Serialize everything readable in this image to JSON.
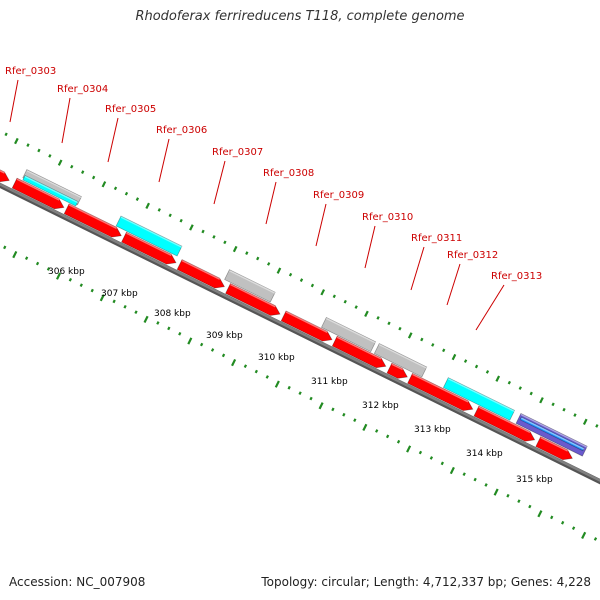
{
  "title": "Rhodoferax ferrireducens T118, complete genome",
  "footer": {
    "accession": "Accession: NC_007908",
    "summary": "Topology: circular; Length: 4,712,337 bp; Genes: 4,228"
  },
  "colors": {
    "cds_forward": "#ff0000",
    "feature_cyan": "#00ffff",
    "feature_gray": "#c0c0c0",
    "feature_purple": "#6a5acd",
    "backbone": "#808080",
    "tick": "#228b22",
    "label": "#cc0000"
  },
  "gene_labels": [
    "Rfer_0303",
    "Rfer_0304",
    "Rfer_0305",
    "Rfer_0306",
    "Rfer_0307",
    "Rfer_0308",
    "Rfer_0309",
    "Rfer_0310",
    "Rfer_0311",
    "Rfer_0312",
    "Rfer_0313"
  ],
  "scale_labels": [
    "306 kbp",
    "307 kbp",
    "308 kbp",
    "309 kbp",
    "310 kbp",
    "311 kbp",
    "312 kbp",
    "313 kbp",
    "314 kbp",
    "315 kbp"
  ]
}
